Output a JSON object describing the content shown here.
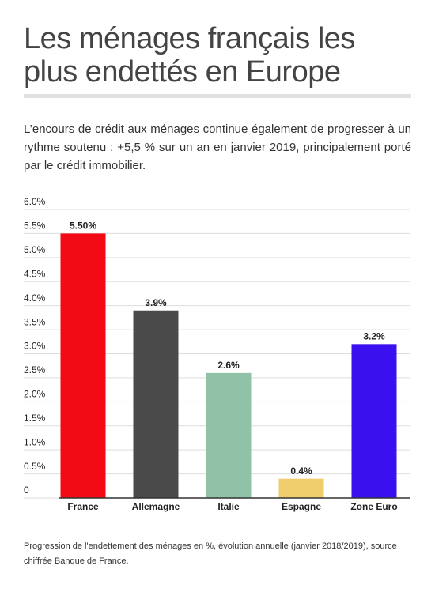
{
  "chart_data": {
    "type": "bar",
    "title": "Les ménages français les plus endettés en Europe",
    "subtitle": "L’encours de crédit aux ménages continue également de progresser à un rythme soutenu : +5,5 % sur un an en janvier 2019, principalement porté par le crédit immobilier.",
    "note": "Progression de l'endettement des ménages en %, évolution annuelle (janvier 2018/2019), source chiffrée Banque de France.",
    "categories": [
      "France",
      "Allemagne",
      "Italie",
      "Espagne",
      "Zone Euro"
    ],
    "values": [
      5.5,
      3.9,
      2.6,
      0.4,
      3.2
    ],
    "value_labels": [
      "5.50%",
      "3.9%",
      "2.6%",
      "0.4%",
      "3.2%"
    ],
    "colors": [
      "#f20a14",
      "#4a4a4a",
      "#8fc2a6",
      "#efcc6c",
      "#3a10ee"
    ],
    "ylim": [
      0,
      6
    ],
    "yticks": [
      0,
      {
        "value": 0.5,
        "label": "0.5%"
      },
      {
        "value": 1,
        "label": "1.0%"
      },
      {
        "value": 1.5,
        "label": "1.5%"
      },
      {
        "value": 2,
        "label": "2.0%"
      },
      {
        "value": 2.5,
        "label": "2.5%"
      },
      {
        "value": 3,
        "label": "3.0%"
      },
      {
        "value": 3.5,
        "label": "3.5%"
      },
      {
        "value": 4,
        "label": "4.0%"
      },
      {
        "value": 4.5,
        "label": "4.5%"
      },
      {
        "value": 5,
        "label": "5.0%"
      },
      {
        "value": 5.5,
        "label": "5.5%"
      },
      {
        "value": 6,
        "label": "6.0%"
      }
    ],
    "grid": true
  }
}
